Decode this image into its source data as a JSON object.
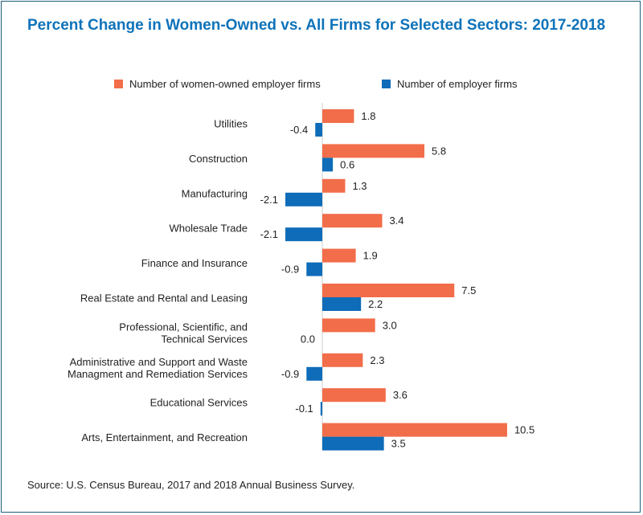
{
  "title": "Percent Change in Women-Owned vs. All Firms for Selected Sectors: 2017-2018",
  "source": "Source: U.S. Census Bureau, 2017 and 2018 Annual Business Survey.",
  "colors": {
    "women": "#f26d4a",
    "all": "#0e6cb8",
    "frame": "#1f5d7a",
    "title": "#0e73b9"
  },
  "chart_data": {
    "type": "bar",
    "orientation": "horizontal",
    "legend_position": "top",
    "grid": false,
    "categories": [
      [
        "Utilities"
      ],
      [
        "Construction"
      ],
      [
        "Manufacturing"
      ],
      [
        "Wholesale Trade"
      ],
      [
        "Finance and Insurance"
      ],
      [
        "Real Estate and Rental and Leasing"
      ],
      [
        "Professional, Scientific, and",
        "Technical Services"
      ],
      [
        "Administrative and Support and Waste",
        "Managment and Remediation Services"
      ],
      [
        "Educational Services"
      ],
      [
        "Arts, Entertainment, and Recreation"
      ]
    ],
    "series": [
      {
        "name": "Number of women-owned employer firms",
        "values": [
          1.8,
          5.8,
          1.3,
          3.4,
          1.9,
          7.5,
          3.0,
          2.3,
          3.6,
          10.5
        ],
        "labels": [
          "1.8",
          "5.8",
          "1.3",
          "3.4",
          "1.9",
          "7.5",
          "3.0",
          "2.3",
          "3.6",
          "10.5"
        ]
      },
      {
        "name": "Number of employer firms",
        "values": [
          -0.4,
          0.6,
          -2.1,
          -2.1,
          -0.9,
          2.2,
          0.0,
          -0.9,
          -0.1,
          3.5
        ],
        "labels": [
          "-0.4",
          "0.6",
          "-2.1",
          "-2.1",
          "-0.9",
          "2.2",
          "0.0",
          "-0.9",
          "-0.1",
          "3.5"
        ]
      }
    ]
  }
}
